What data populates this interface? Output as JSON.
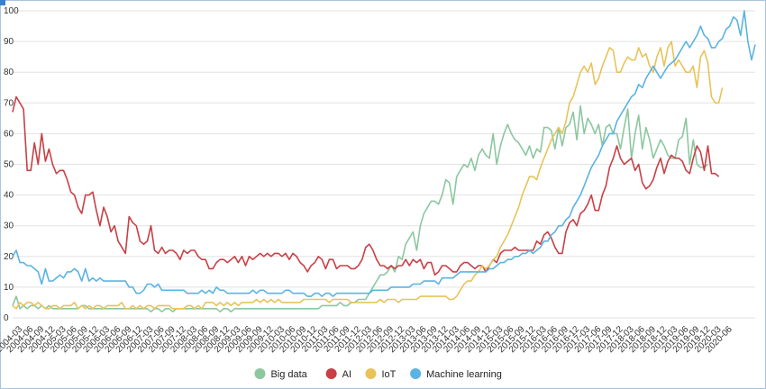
{
  "chart_data": {
    "type": "line",
    "title": "",
    "xlabel": "",
    "ylabel": "",
    "ylim": [
      0,
      100
    ],
    "yticks": [
      0,
      10,
      20,
      30,
      40,
      50,
      60,
      70,
      80,
      90,
      100
    ],
    "grid": true,
    "legend_position": "bottom",
    "start": "2004-01",
    "x_tick_labels": [
      "2004-03",
      "2004-06",
      "2004-09",
      "2004-12",
      "2005-03",
      "2005-06",
      "2005-09",
      "2005-12",
      "2006-03",
      "2006-06",
      "2006-09",
      "2006-12",
      "2007-03",
      "2007-06",
      "2007-09",
      "2007-12",
      "2008-03",
      "2008-06",
      "2008-09",
      "2008-12",
      "2009-03",
      "2009-06",
      "2009-09",
      "2009-12",
      "2010-03",
      "2010-06",
      "2010-09",
      "2010-12",
      "2011-03",
      "2011-06",
      "2011-09",
      "2011-12",
      "2012-03",
      "2012-06",
      "2012-09",
      "2012-12",
      "2013-03",
      "2013-06",
      "2013-09",
      "2013-12",
      "2014-03",
      "2014-06",
      "2014-09",
      "2014-12",
      "2015-03",
      "2015-06",
      "2015-09",
      "2015-12",
      "2016-03",
      "2016-06",
      "2016-09",
      "2016-12",
      "2017-03",
      "2017-06",
      "2017-09",
      "2017-12",
      "2018-03",
      "2018-06",
      "2018-09",
      "2018-12",
      "2019-03",
      "2019-06",
      "2019-09",
      "2019-12",
      "2020-03",
      "2020-06"
    ],
    "series": [
      {
        "name": "Big data",
        "color": "#8cc79f",
        "values": [
          4,
          7,
          3,
          4,
          3,
          4,
          4,
          3,
          4,
          3,
          4,
          3,
          3,
          3,
          3,
          3,
          3,
          3,
          3,
          4,
          4,
          3,
          3,
          3,
          3,
          3,
          3,
          3,
          3,
          3,
          3,
          3,
          3,
          3,
          3,
          3,
          3,
          3,
          2,
          3,
          3,
          2,
          3,
          3,
          2,
          3,
          3,
          3,
          3,
          3,
          3,
          3,
          3,
          3,
          3,
          3,
          3,
          2,
          3,
          3,
          2,
          3,
          3,
          3,
          3,
          3,
          3,
          3,
          3,
          3,
          3,
          3,
          3,
          3,
          3,
          3,
          3,
          3,
          3,
          3,
          3,
          3,
          3,
          3,
          3,
          4,
          4,
          4,
          4,
          4,
          5,
          4,
          4,
          5,
          5,
          6,
          6,
          6,
          8,
          10,
          12,
          14,
          14,
          15,
          17,
          15,
          20,
          19,
          24,
          26,
          28,
          22,
          30,
          34,
          36,
          38,
          38,
          37,
          40,
          45,
          44,
          37,
          46,
          48,
          50,
          49,
          52,
          48,
          53,
          55,
          53,
          52,
          60,
          50,
          56,
          60,
          63,
          60,
          58,
          57,
          55,
          53,
          56,
          52,
          55,
          54,
          62,
          62,
          61,
          55,
          62,
          56,
          62,
          63,
          67,
          58,
          69,
          60,
          65,
          63,
          60,
          63,
          56,
          62,
          63,
          60,
          60,
          55,
          62,
          68,
          52,
          60,
          66,
          55,
          62,
          58,
          52,
          55,
          58,
          56,
          53,
          52,
          52,
          58,
          59,
          65,
          50,
          58,
          50,
          49,
          49,
          50
        ]
      },
      {
        "name": "AI",
        "color": "#c84046",
        "values": [
          67,
          72,
          70,
          68,
          48,
          48,
          57,
          50,
          60,
          51,
          55,
          50,
          47,
          48,
          48,
          45,
          41,
          40,
          36,
          34,
          40,
          40,
          41,
          35,
          30,
          36,
          33,
          28,
          30,
          25,
          23,
          21,
          33,
          31,
          30,
          25,
          24,
          25,
          30,
          22,
          21,
          23,
          21,
          22,
          22,
          21,
          19,
          22,
          21,
          22,
          22,
          20,
          19,
          19,
          16,
          16,
          18,
          19,
          19,
          18,
          19,
          20,
          18,
          20,
          17,
          20,
          19,
          20,
          21,
          20,
          21,
          20,
          21,
          21,
          20,
          21,
          19,
          21,
          20,
          18,
          17,
          15,
          17,
          18,
          20,
          19,
          16,
          19,
          19,
          16,
          17,
          17,
          17,
          16,
          16,
          17,
          19,
          23,
          24,
          22,
          19,
          17,
          17,
          16,
          17,
          16,
          17,
          17,
          19,
          17,
          19,
          18,
          19,
          16,
          18,
          18,
          14,
          15,
          17,
          17,
          16,
          15,
          15,
          17,
          18,
          18,
          17,
          16,
          17,
          17,
          15,
          17,
          19,
          18,
          21,
          22,
          22,
          22,
          23,
          22,
          22,
          22,
          22,
          22,
          25,
          24,
          27,
          28,
          26,
          23,
          21,
          21,
          28,
          31,
          32,
          30,
          34,
          35,
          37,
          40,
          35,
          35,
          40,
          43,
          49,
          52,
          56,
          52,
          50,
          51,
          52,
          48,
          50,
          44,
          42,
          43,
          45,
          49,
          52,
          47,
          51,
          53,
          52,
          52,
          51,
          48,
          47,
          52,
          56,
          54,
          48,
          56,
          47,
          47,
          46
        ]
      },
      {
        "name": "IoT",
        "color": "#e8c35a",
        "values": [
          4,
          3,
          5,
          4,
          5,
          5,
          4,
          5,
          4,
          3,
          3,
          4,
          4,
          3,
          4,
          4,
          4,
          5,
          3,
          4,
          3,
          4,
          3,
          4,
          4,
          3,
          4,
          4,
          4,
          4,
          5,
          3,
          3,
          4,
          3,
          4,
          3,
          4,
          4,
          3,
          4,
          4,
          4,
          4,
          3,
          3,
          3,
          3,
          4,
          4,
          3,
          4,
          3,
          5,
          5,
          5,
          4,
          5,
          4,
          5,
          4,
          5,
          4,
          5,
          5,
          5,
          5,
          6,
          5,
          6,
          5,
          6,
          5,
          6,
          5,
          5,
          5,
          5,
          5,
          5,
          6,
          6,
          6,
          6,
          6,
          6,
          6,
          5,
          6,
          6,
          6,
          6,
          6,
          5,
          5,
          5,
          5,
          5,
          5,
          5,
          5,
          6,
          5,
          6,
          6,
          6,
          5,
          6,
          6,
          6,
          6,
          6,
          7,
          7,
          7,
          7,
          7,
          7,
          7,
          7,
          6,
          6,
          7,
          9,
          11,
          12,
          12,
          14,
          15,
          17,
          16,
          17,
          19,
          20,
          23,
          25,
          27,
          30,
          33,
          36,
          40,
          43,
          46,
          46,
          45,
          49,
          52,
          55,
          58,
          60,
          62,
          60,
          64,
          70,
          72,
          76,
          80,
          82,
          80,
          83,
          76,
          78,
          82,
          85,
          88,
          87,
          80,
          80,
          83,
          85,
          84,
          84,
          88,
          85,
          86,
          82,
          80,
          85,
          88,
          82,
          88,
          90,
          82,
          84,
          82,
          80,
          80,
          82,
          75,
          85,
          87,
          83,
          72,
          70,
          70,
          75
        ]
      },
      {
        "name": "Machine learning",
        "color": "#5bb3e3",
        "values": [
          20,
          22,
          18,
          18,
          17,
          17,
          16,
          15,
          11,
          16,
          12,
          12,
          13,
          14,
          13,
          15,
          15,
          16,
          15,
          12,
          16,
          12,
          13,
          12,
          13,
          12,
          12,
          12,
          12,
          12,
          12,
          12,
          10,
          10,
          8,
          8,
          9,
          11,
          11,
          10,
          11,
          9,
          9,
          9,
          9,
          9,
          9,
          9,
          8,
          8,
          8,
          8,
          9,
          8,
          9,
          8,
          10,
          9,
          9,
          8,
          8,
          8,
          8,
          8,
          8,
          8,
          9,
          8,
          9,
          9,
          8,
          8,
          8,
          8,
          8,
          9,
          9,
          8,
          8,
          8,
          8,
          7,
          7,
          8,
          8,
          7,
          8,
          8,
          7,
          8,
          8,
          8,
          8,
          8,
          8,
          8,
          8,
          8,
          8,
          9,
          9,
          9,
          9,
          9,
          10,
          10,
          10,
          10,
          10,
          10,
          11,
          11,
          11,
          12,
          12,
          12,
          12,
          11,
          13,
          13,
          13,
          13,
          14,
          15,
          15,
          15,
          15,
          15,
          15,
          15,
          15,
          16,
          16,
          17,
          18,
          18,
          19,
          19,
          20,
          20,
          21,
          21,
          22,
          21,
          22,
          23,
          25,
          25,
          27,
          28,
          30,
          30,
          32,
          33,
          36,
          38,
          40,
          43,
          46,
          49,
          51,
          53,
          56,
          58,
          60,
          60,
          64,
          66,
          68,
          70,
          72,
          73,
          76,
          75,
          78,
          80,
          82,
          80,
          78,
          80,
          82,
          83,
          84,
          86,
          88,
          90,
          88,
          90,
          92,
          95,
          92,
          91,
          88,
          88,
          90,
          91,
          94,
          95,
          98,
          97,
          92,
          100,
          90,
          84,
          89
        ]
      }
    ]
  }
}
